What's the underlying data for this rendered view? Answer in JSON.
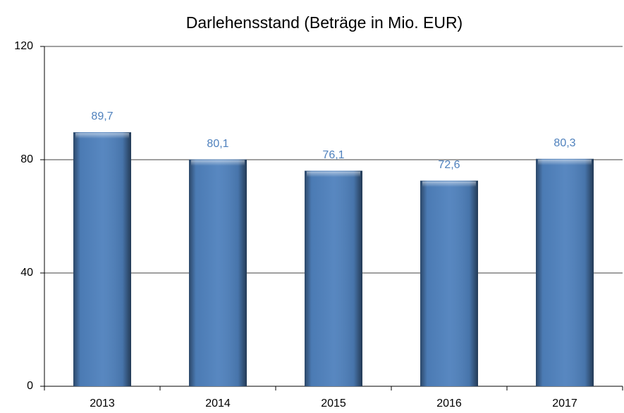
{
  "chart_data": {
    "type": "bar",
    "title": "Darlehensstand (Beträge in Mio. EUR)",
    "categories": [
      "2013",
      "2014",
      "2015",
      "2016",
      "2017"
    ],
    "values": [
      89.7,
      80.1,
      76.1,
      72.6,
      80.3
    ],
    "value_labels": [
      "89,7",
      "80,1",
      "76,1",
      "72,6",
      "80,3"
    ],
    "color": "#4f81bd",
    "label_color": "#4f81bd",
    "ylim": [
      0,
      120
    ],
    "yticks": [
      0,
      40,
      80,
      120
    ],
    "grid": true
  }
}
